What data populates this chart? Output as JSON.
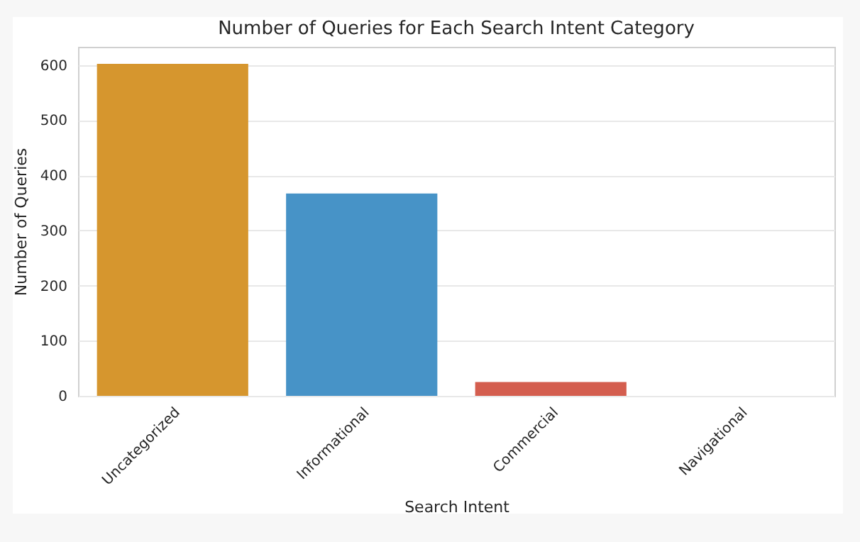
{
  "chart_data": {
    "type": "bar",
    "title": "Number of Queries for Each Search Intent Category",
    "xlabel": "Search Intent",
    "ylabel": "Number of Queries",
    "categories": [
      "Uncategorized",
      "Informational",
      "Commercial",
      "Navigational"
    ],
    "values": [
      602,
      367,
      25,
      0
    ],
    "colors": [
      "#d6962e",
      "#4793c7",
      "#d45e4f",
      "#8e7fbd"
    ],
    "ylim": [
      0,
      633
    ],
    "yticks": [
      0,
      100,
      200,
      300,
      400,
      500,
      600
    ],
    "grid": "y"
  }
}
